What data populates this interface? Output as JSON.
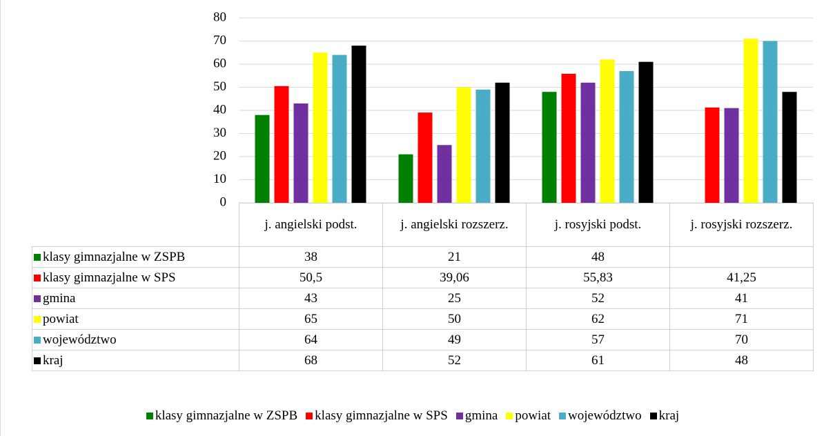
{
  "chart_data": {
    "type": "bar",
    "categories": [
      "j. angielski podst.",
      "j. angielski rozszerz.",
      "j. rosyjski podst.",
      "j. rosyjski rozszerz."
    ],
    "series": [
      {
        "name": "klasy gimnazjalne w ZSPB",
        "color": "#008000",
        "values": [
          38,
          21,
          48,
          null
        ]
      },
      {
        "name": "klasy gimnazjalne w SPS",
        "color": "#ff0000",
        "values": [
          50.5,
          39.06,
          55.83,
          41.25
        ],
        "value_labels": [
          "50,5",
          "39,06",
          "55,83",
          "41,25"
        ]
      },
      {
        "name": "gmina",
        "color": "#7030a0",
        "values": [
          43,
          25,
          52,
          41
        ]
      },
      {
        "name": "powiat",
        "color": "#ffff00",
        "values": [
          65,
          50,
          62,
          71
        ]
      },
      {
        "name": "województwo",
        "color": "#4bacc6",
        "values": [
          64,
          49,
          57,
          70
        ]
      },
      {
        "name": "kraj",
        "color": "#000000",
        "values": [
          68,
          52,
          61,
          48
        ]
      }
    ],
    "ylim": [
      0,
      80
    ],
    "yticks": [
      0,
      10,
      20,
      30,
      40,
      50,
      60,
      70,
      80
    ],
    "grid": true,
    "legend": "bottom",
    "data_table": true
  }
}
